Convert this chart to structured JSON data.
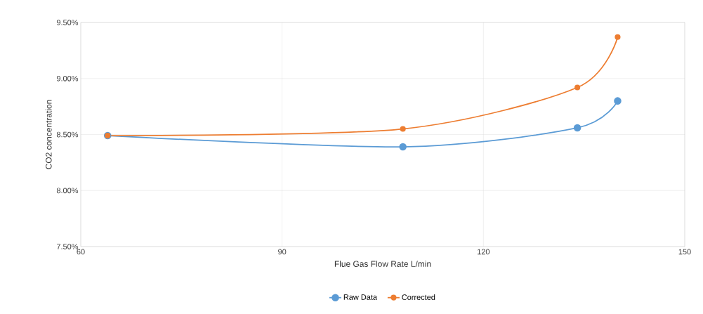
{
  "chart_data": {
    "type": "line",
    "xlabel": "Flue Gas Flow Rate L/min",
    "ylabel": "CO2 concentration",
    "x": [
      64,
      108,
      134,
      140
    ],
    "series": [
      {
        "name": "Raw Data",
        "color": "#5b9bd5",
        "values": [
          8.49,
          8.39,
          8.56,
          8.8
        ]
      },
      {
        "name": "Corrected",
        "color": "#ed7d31",
        "values": [
          8.49,
          8.55,
          8.92,
          9.37
        ]
      }
    ],
    "xlim": [
      60,
      150
    ],
    "xticks": [
      60,
      90,
      120,
      150
    ],
    "ylim": [
      7.5,
      9.5
    ],
    "yticks": [
      {
        "value": 7.5,
        "label": "7.50%"
      },
      {
        "value": 8.0,
        "label": "8.00%"
      },
      {
        "value": 8.5,
        "label": "8.50%"
      },
      {
        "value": 9.0,
        "label": "9.00%"
      },
      {
        "value": 9.5,
        "label": "9.50%"
      }
    ],
    "grid": true,
    "legend": "bottom",
    "marker": "circle",
    "line_style": "solid"
  }
}
